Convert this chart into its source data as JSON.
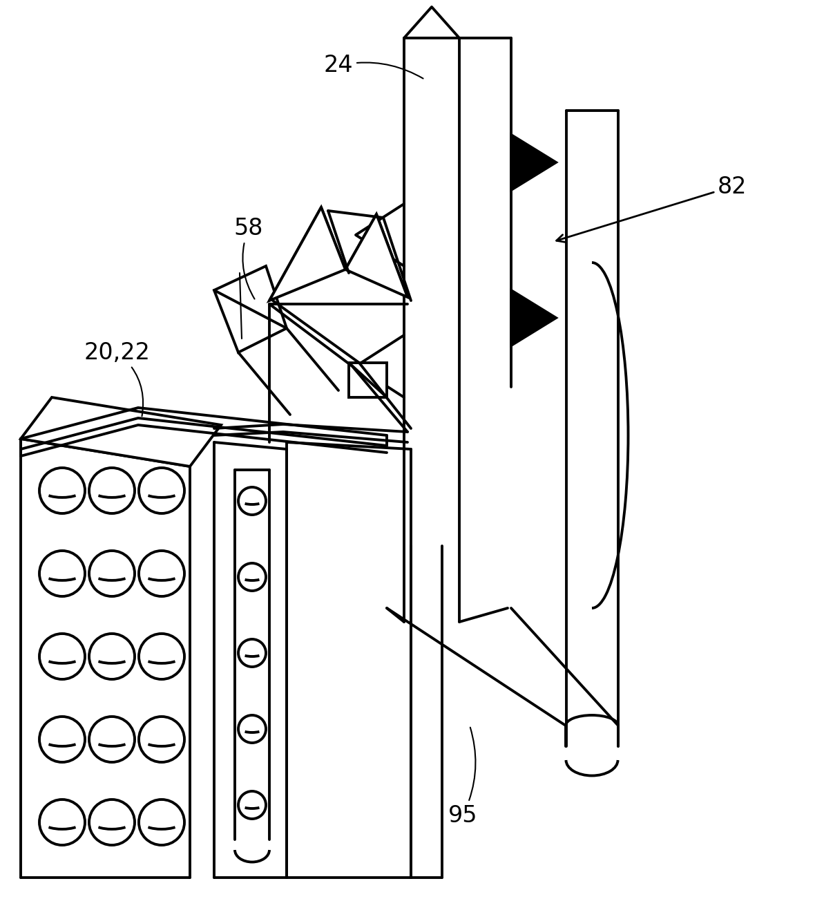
{
  "bg_color": "#ffffff",
  "lc": "#000000",
  "lw": 2.8,
  "lw_thin": 1.5,
  "label_fontsize": 24,
  "figsize": [
    11.93,
    13.01
  ],
  "dpi": 100
}
